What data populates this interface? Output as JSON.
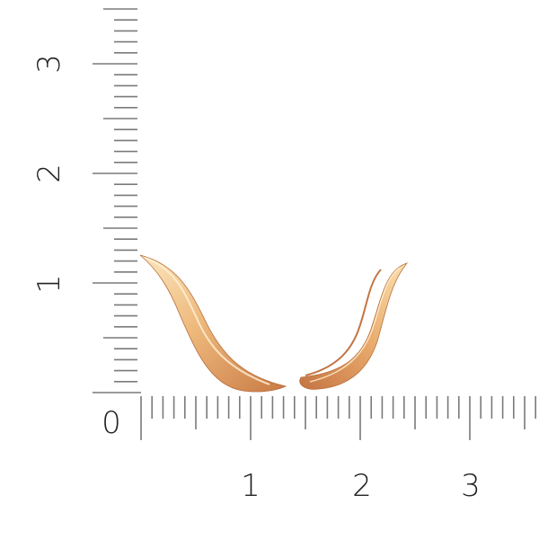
{
  "ruler": {
    "unit_labels_x": [
      "0",
      "1",
      "2",
      "3"
    ],
    "unit_labels_y": [
      "1",
      "2",
      "3"
    ],
    "subdivisions_per_unit": 10,
    "tick_color": "#7a7a7a"
  },
  "product": {
    "name_icon": "gold-wave-ear-climber-earrings",
    "metal_colors": [
      "#f7d9a0",
      "#e7a868",
      "#c97a45"
    ]
  }
}
